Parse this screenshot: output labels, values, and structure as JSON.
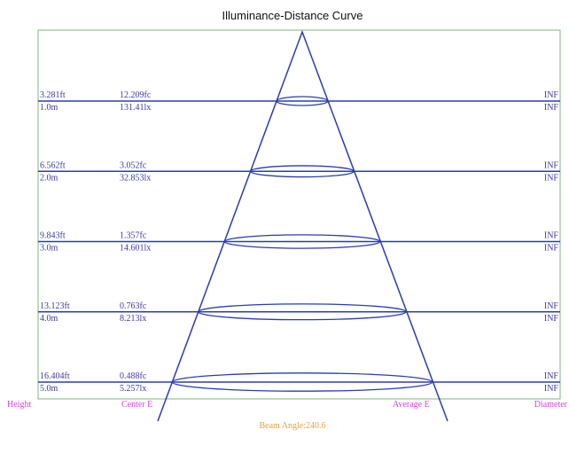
{
  "title": "Illuminance-Distance Curve",
  "rows": [
    {
      "height_ft": "3.281ft",
      "center_fc": "12.209fc",
      "diameter_1": "INF",
      "height_m": "1.0m",
      "center_lux": "131.41lx",
      "diameter_2": "INF"
    },
    {
      "height_ft": "6.562ft",
      "center_fc": "3.052fc",
      "diameter_1": "INF",
      "height_m": "2.0m",
      "center_lux": "32.853lx",
      "diameter_2": "INF"
    },
    {
      "height_ft": "9.843ft",
      "center_fc": "1.357fc",
      "diameter_1": "INF",
      "height_m": "3.0m",
      "center_lux": "14.601lx",
      "diameter_2": "INF"
    },
    {
      "height_ft": "13.123ft",
      "center_fc": "0.763fc",
      "diameter_1": "INF",
      "height_m": "4.0m",
      "center_lux": "8.213lx",
      "diameter_2": "INF"
    },
    {
      "height_ft": "16.404ft",
      "center_fc": "0.488fc",
      "diameter_1": "INF",
      "height_m": "5.0m",
      "center_lux": "5.257lx",
      "diameter_2": "INF"
    }
  ],
  "footer": {
    "height": "Height",
    "center": "Center E",
    "average": "Average E",
    "diameter": "Diameter"
  },
  "beam_angle": "Beam Angle:240.6"
}
